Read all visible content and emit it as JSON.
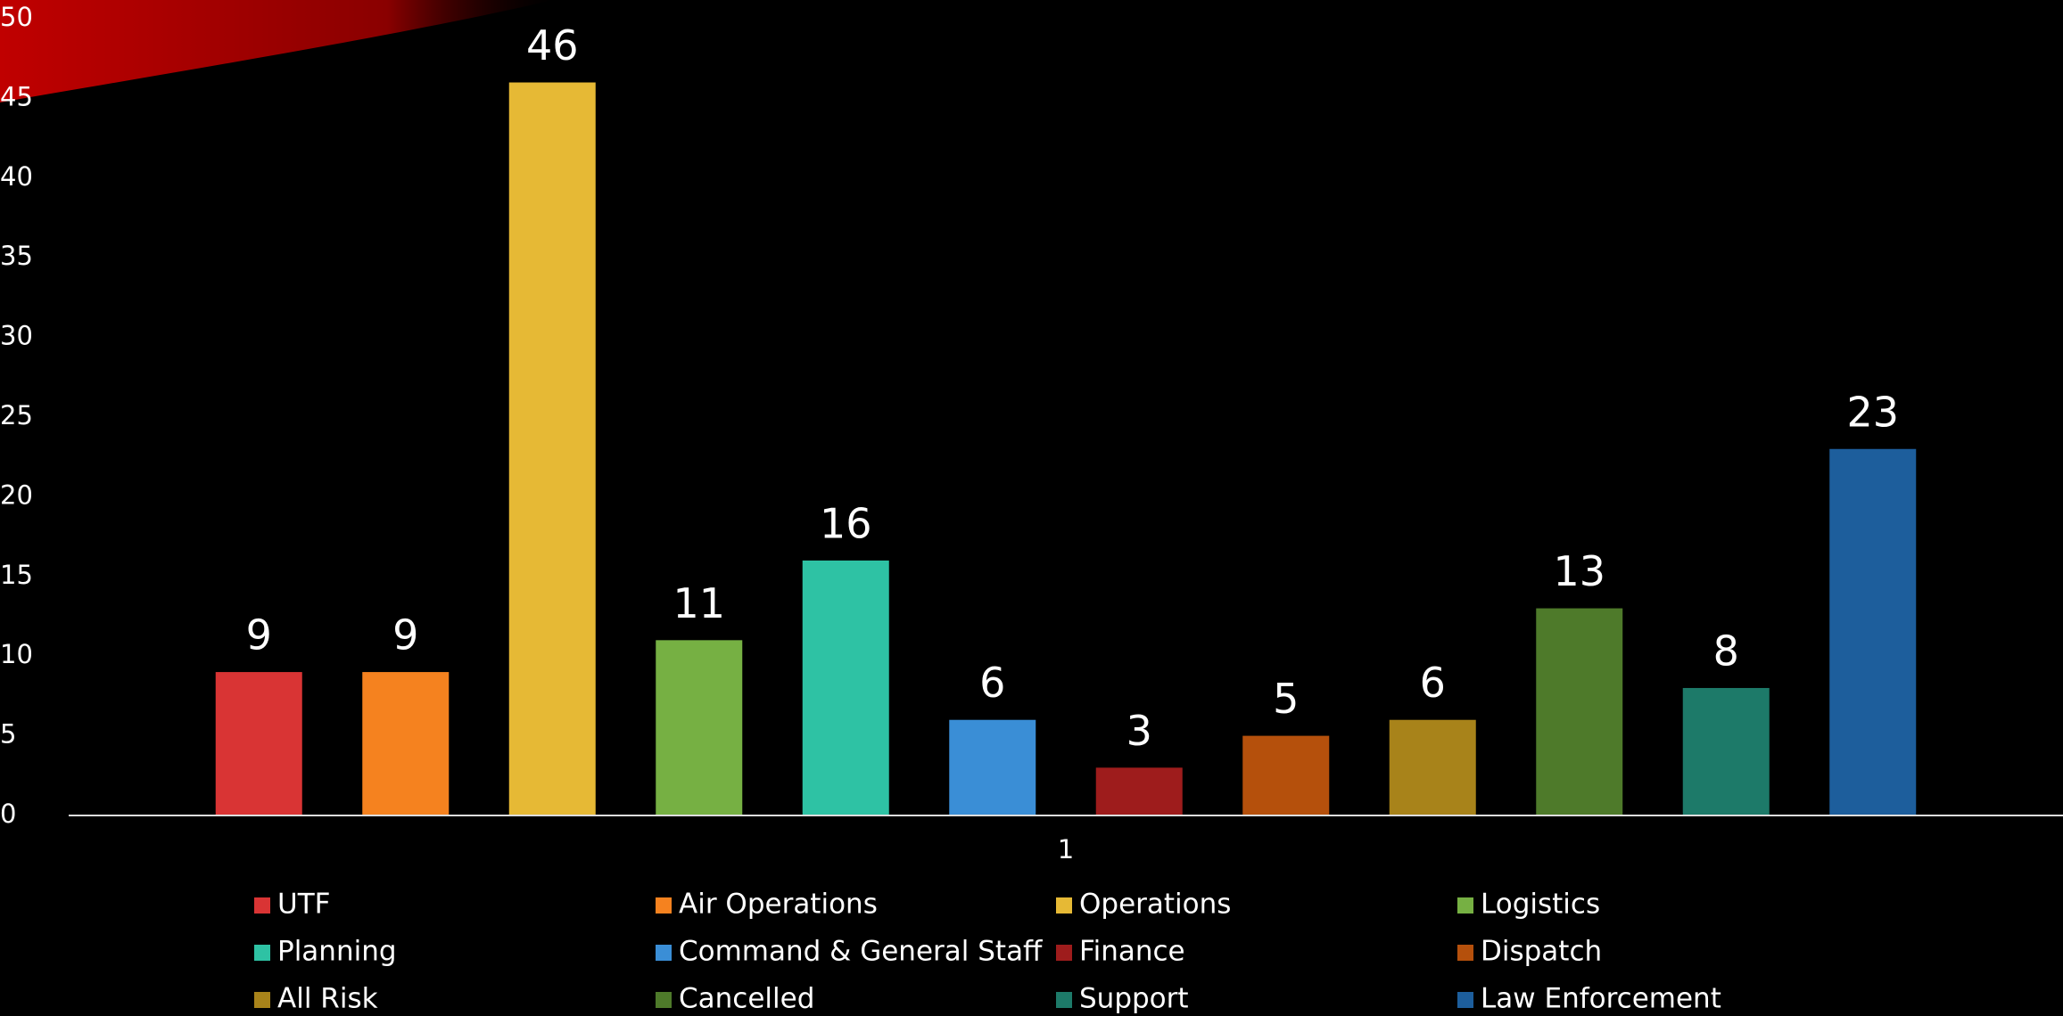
{
  "chart_data": {
    "type": "bar",
    "categories": [
      "1"
    ],
    "series": [
      {
        "name": "UTF",
        "color": "#d93434",
        "values": [
          9
        ]
      },
      {
        "name": "Air Operations",
        "color": "#f5821f",
        "values": [
          9
        ]
      },
      {
        "name": "Operations",
        "color": "#e6b935",
        "values": [
          46
        ]
      },
      {
        "name": "Logistics",
        "color": "#76b043",
        "values": [
          11
        ]
      },
      {
        "name": "Planning",
        "color": "#2ec2a4",
        "values": [
          16
        ]
      },
      {
        "name": "Command & General Staff",
        "color": "#3a8ed6",
        "values": [
          6
        ]
      },
      {
        "name": "Finance",
        "color": "#9e1c1c",
        "values": [
          3
        ]
      },
      {
        "name": "Dispatch",
        "color": "#b5500c",
        "values": [
          5
        ]
      },
      {
        "name": "All Risk",
        "color": "#a8831a",
        "values": [
          6
        ]
      },
      {
        "name": "Cancelled",
        "color": "#4e7a2a",
        "values": [
          13
        ]
      },
      {
        "name": "Support",
        "color": "#1d7a69",
        "values": [
          8
        ]
      },
      {
        "name": "Law Enforcement",
        "color": "#1d5e9c",
        "values": [
          23
        ]
      }
    ],
    "ylim": [
      0,
      50
    ],
    "yticks": [
      0,
      5,
      10,
      15,
      20,
      25,
      30,
      35,
      40,
      45,
      50
    ],
    "grid": false,
    "legend": "bottom"
  }
}
